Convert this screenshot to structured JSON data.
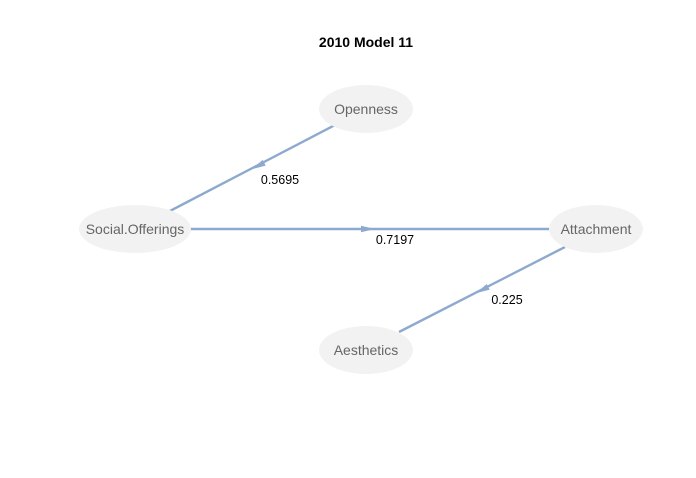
{
  "diagram": {
    "title": "2010 Model 11",
    "edge_color": "#8ea9cf",
    "node_fill": "#f2f2f2",
    "node_label_color": "#666666",
    "nodes": [
      {
        "id": "openness",
        "label": "Openness"
      },
      {
        "id": "social",
        "label": "Social.Offerings"
      },
      {
        "id": "attachment",
        "label": "Attachment"
      },
      {
        "id": "aesthetics",
        "label": "Aesthetics"
      }
    ],
    "edges": [
      {
        "id": "openness-social",
        "from": "openness",
        "to": "social",
        "label": "0.5695"
      },
      {
        "id": "social-attachment",
        "from": "social",
        "to": "attachment",
        "label": "0.7197"
      },
      {
        "id": "attachment-aesthetics",
        "from": "attachment",
        "to": "aesthetics",
        "label": "0.225"
      }
    ]
  }
}
